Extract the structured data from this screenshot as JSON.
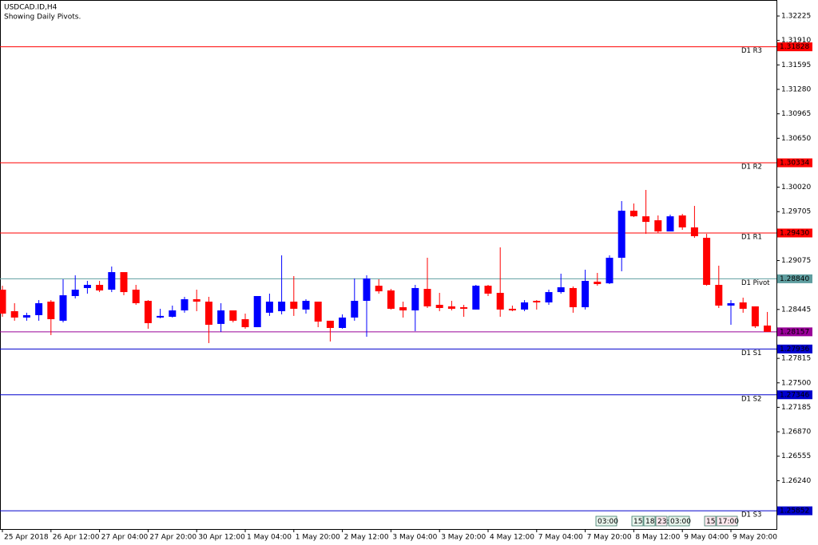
{
  "chart_data": {
    "type": "candlestick",
    "title": "USDCAD.ID,H4",
    "subtitle": "Showing Daily Pivots.",
    "up_color": "#0000ff",
    "down_color": "#ff0000",
    "categories": [
      "25 Apr 2018",
      null,
      null,
      null,
      "26 Apr 12:00",
      null,
      null,
      null,
      "27 Apr 04:00",
      null,
      null,
      null,
      "27 Apr 20:00",
      null,
      null,
      null,
      "30 Apr 12:00",
      null,
      null,
      null,
      "1 May 04:00",
      null,
      null,
      null,
      "1 May 20:00",
      null,
      null,
      null,
      "2 May 12:00",
      null,
      null,
      null,
      "3 May 04:00",
      null,
      null,
      null,
      "3 May 20:00",
      null,
      null,
      null,
      "4 May 12:00",
      null,
      null,
      null,
      "7 May 04:00",
      null,
      null,
      null,
      "7 May 20:00",
      null,
      null,
      null,
      "8 May 12:00",
      null,
      null,
      null,
      "9 May 04:00",
      null,
      null,
      null,
      "9 May 20:00",
      null,
      null,
      null
    ],
    "open": [
      1.287,
      1.28423,
      1.28341,
      1.28372,
      1.28546,
      1.283,
      1.28618,
      1.28721,
      1.28762,
      1.287,
      1.28926,
      1.287,
      1.28556,
      1.28341,
      1.28351,
      1.28433,
      1.28577,
      1.28546,
      1.28259,
      1.28433,
      1.2832,
      1.28217,
      1.28403,
      1.28423,
      1.28546,
      1.28444,
      1.28546,
      1.283,
      1.28207,
      1.28341,
      1.28556,
      1.28751,
      1.2869,
      1.28474,
      1.28433,
      1.2871,
      1.28505,
      1.28485,
      1.28474,
      1.28444,
      1.28751,
      1.28659,
      1.28454,
      1.28444,
      1.28556,
      1.28536,
      1.28669,
      1.28721,
      1.28474,
      1.28803,
      1.28782,
      1.29111,
      1.29717,
      1.29645,
      1.29594,
      1.2945,
      1.29656,
      1.29502,
      1.29368,
      1.28762,
      1.28495,
      1.28536,
      1.28485,
      1.28238
    ],
    "high": [
      1.28751,
      1.28526,
      1.28403,
      1.28566,
      1.28566,
      1.28834,
      1.28885,
      1.28813,
      1.28813,
      1.28998,
      1.28926,
      1.28762,
      1.28566,
      1.28454,
      1.28495,
      1.28608,
      1.287,
      1.28608,
      1.28526,
      1.28433,
      1.28392,
      1.28618,
      1.28649,
      1.29142,
      1.28875,
      1.28577,
      1.28546,
      1.283,
      1.28382,
      1.28844,
      1.28885,
      1.28834,
      1.2871,
      1.28546,
      1.28762,
      1.29111,
      1.28659,
      1.28556,
      1.28505,
      1.28762,
      1.28762,
      1.29245,
      1.28495,
      1.28566,
      1.28566,
      1.287,
      1.28906,
      1.28741,
      1.28957,
      1.28916,
      1.29142,
      1.29841,
      1.2981,
      1.29985,
      1.29656,
      1.29666,
      1.29676,
      1.29779,
      1.29419,
      1.29009,
      1.28566,
      1.28597,
      1.28485,
      1.28413
    ],
    "low": [
      1.28351,
      1.283,
      1.283,
      1.283,
      1.28115,
      1.28279,
      1.28587,
      1.28649,
      1.28669,
      1.28669,
      1.28628,
      1.28505,
      1.28197,
      1.28331,
      1.28341,
      1.28403,
      1.28423,
      1.28012,
      1.28156,
      1.28279,
      1.28197,
      1.28217,
      1.28362,
      1.28382,
      1.28362,
      1.28392,
      1.28217,
      1.28033,
      1.28197,
      1.283,
      1.28094,
      1.28649,
      1.28444,
      1.28341,
      1.28166,
      1.28464,
      1.28423,
      1.28433,
      1.28351,
      1.28444,
      1.28618,
      1.28351,
      1.28423,
      1.28423,
      1.28444,
      1.28505,
      1.28649,
      1.28403,
      1.28444,
      1.28751,
      1.28772,
      1.28937,
      1.29635,
      1.29419,
      1.2943,
      1.2945,
      1.29471,
      1.29368,
      1.28751,
      1.28464,
      1.28248,
      1.28403,
      1.28207,
      1.28156
    ],
    "close": [
      1.28392,
      1.28341,
      1.28372,
      1.28526,
      1.2832,
      1.28628,
      1.287,
      1.28762,
      1.2869,
      1.28926,
      1.28669,
      1.28526,
      1.28269,
      1.28362,
      1.28433,
      1.28577,
      1.28546,
      1.28248,
      1.28433,
      1.283,
      1.28217,
      1.28618,
      1.28546,
      1.28546,
      1.28454,
      1.28556,
      1.28289,
      1.28207,
      1.28341,
      1.28556,
      1.28844,
      1.28679,
      1.28454,
      1.28433,
      1.28721,
      1.28485,
      1.28464,
      1.28454,
      1.28454,
      1.28751,
      1.28649,
      1.28444,
      1.28433,
      1.28536,
      1.28536,
      1.28669,
      1.28731,
      1.28474,
      1.28813,
      1.28772,
      1.29111,
      1.29717,
      1.29645,
      1.29573,
      1.2945,
      1.29645,
      1.29502,
      1.29389,
      1.28762,
      1.28495,
      1.28526,
      1.28454,
      1.28228,
      1.28157
    ],
    "ylim": [
      1.25617,
      1.32431
    ],
    "yticks": [
      1.32225,
      {
        "value": 1.3191,
        "label": "1.31910"
      },
      1.31595,
      {
        "value": 1.3128,
        "label": "1.31280"
      },
      1.30965,
      {
        "value": 1.3065,
        "label": "1.30650"
      },
      {
        "value": 1.3002,
        "label": "1.30020"
      },
      1.29705,
      1.29075,
      1.28445,
      1.27815,
      {
        "value": 1.275,
        "label": "1.27500"
      },
      1.27185,
      {
        "value": 1.2687,
        "label": "1.26870"
      },
      1.26555,
      {
        "value": 1.2624,
        "label": "1.26240"
      }
    ],
    "levels": [
      {
        "name": "D1 R3",
        "value": 1.31828,
        "color": "#ff0000"
      },
      {
        "name": "D1 R2",
        "value": 1.30334,
        "color": "#ff0000"
      },
      {
        "name": "D1 R1",
        "value": 1.2943,
        "value_label": "1.29430",
        "color": "#ff0000"
      },
      {
        "name": "D1 Pivot",
        "value": 1.2884,
        "value_label": "1.28840",
        "color": "#5f9ea0"
      },
      {
        "name": "D1 S1",
        "value": 1.27936,
        "color": "#0000cd"
      },
      {
        "name": "D1 S2",
        "value": 1.27346,
        "color": "#0000cd"
      },
      {
        "name": "D1 S3",
        "value": 1.25852,
        "color": "#0000cd"
      }
    ],
    "current_price": 1.28157,
    "current_color": "#990099",
    "session_labels": [
      "03:00",
      "15:",
      "18:",
      "23:",
      "03:00",
      "15:",
      "17:00"
    ]
  }
}
